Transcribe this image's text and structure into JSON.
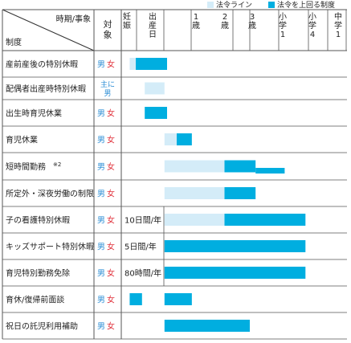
{
  "legend": {
    "law_label": "法令ライン",
    "above_label": "法令を上回る制度",
    "law_color": "#d4ecf8",
    "above_color": "#00aee0"
  },
  "header": {
    "top_right": "時期/事象",
    "bottom_left": "制度",
    "target": "対象"
  },
  "chart_data": {
    "type": "table",
    "timeline": [
      "妊娠",
      "出産日",
      "",
      "1歳",
      "2歳",
      "3歳",
      "小学1",
      "小学4",
      "中学1"
    ],
    "bar_meaning": {
      "law": "法令ライン",
      "above": "法令を上回る制度"
    },
    "rows": [
      {
        "name": "産前産後の特別休暇",
        "target": "男女",
        "note": "",
        "law": [
          [
            0.55,
            0.95
          ]
        ],
        "above": [
          [
            0.95,
            2.25
          ]
        ]
      },
      {
        "name": "配偶者出産時特別休暇",
        "target": "主に男",
        "note": "",
        "law": [
          [
            1.3,
            2.05
          ]
        ],
        "above": []
      },
      {
        "name": "出生時育児休業",
        "target": "男女",
        "note": "",
        "law": [],
        "above": [
          [
            1.3,
            2.25
          ]
        ]
      },
      {
        "name": "育児休業",
        "target": "男女",
        "note": "",
        "law": [
          [
            2.05,
            3.0
          ]
        ],
        "above": [
          [
            3.0,
            4.05
          ]
        ]
      },
      {
        "name": "短時間勤務",
        "name_suffix": "※2",
        "target": "男女",
        "note": "",
        "law": [
          [
            2.05,
            5.7
          ]
        ],
        "above": [
          [
            5.7,
            7.2
          ],
          [
            7.2,
            8.2
          ]
        ]
      },
      {
        "name": "所定外・深夜労働の制限",
        "target": "男女",
        "note": "",
        "law": [
          [
            2.05,
            5.7
          ]
        ],
        "above": [
          [
            5.7,
            7.2
          ]
        ]
      },
      {
        "name": "子の看護特別休暇",
        "target": "男女",
        "note": "10日間/年",
        "law": [
          [
            2.05,
            5.7
          ]
        ],
        "above": [
          [
            5.7,
            8.9
          ]
        ]
      },
      {
        "name": "キッズサポート特別休暇",
        "target": "男女",
        "note": "5日間/年",
        "law": [],
        "above": [
          [
            2.05,
            8.9
          ]
        ]
      },
      {
        "name": "育児特別勤務免除",
        "target": "男女",
        "note": "80時間/年",
        "law": [],
        "above": [
          [
            2.05,
            8.9
          ]
        ]
      },
      {
        "name": "育休/復帰前面談",
        "target": "男女",
        "note": "",
        "law": [],
        "above": [
          [
            0.55,
            1.2
          ],
          [
            2.05,
            4.05
          ]
        ]
      },
      {
        "name": "祝日の託児利用補助",
        "target": "男女",
        "note": "",
        "law": [],
        "above": [
          [
            2.05,
            7.0
          ]
        ]
      }
    ]
  }
}
